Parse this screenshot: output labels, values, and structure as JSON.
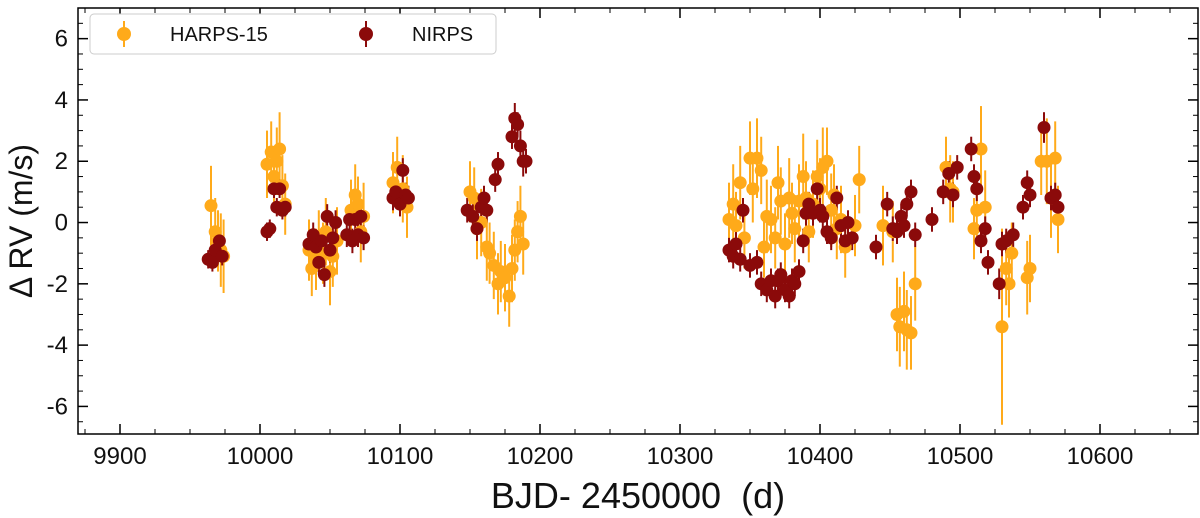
{
  "chart_data": {
    "type": "scatter",
    "title": "",
    "xlabel": "BJD- 2450000  (d)",
    "ylabel": "Δ RV (m/s)",
    "xlim": [
      9870,
      10670
    ],
    "ylim": [
      -6.9,
      7.0
    ],
    "xticks": [
      9900,
      10000,
      10100,
      10200,
      10300,
      10400,
      10500,
      10600
    ],
    "yticks": [
      -6,
      -4,
      -2,
      0,
      2,
      4,
      6
    ],
    "grid": false,
    "legend_position": "top-left",
    "series": [
      {
        "name": "HARPS-15",
        "color": "#FFAA1A",
        "points": [
          [
            9965,
            0.55,
            1.3
          ],
          [
            9968,
            -0.3,
            1.1
          ],
          [
            9970,
            -0.6,
            1.0
          ],
          [
            9972,
            -0.9,
            1.2
          ],
          [
            9974,
            -1.1,
            1.2
          ],
          [
            10005,
            1.9,
            1.1
          ],
          [
            10008,
            2.3,
            1.0
          ],
          [
            10010,
            1.5,
            1.0
          ],
          [
            10012,
            2.0,
            1.1
          ],
          [
            10014,
            2.4,
            1.2
          ],
          [
            10016,
            1.2,
            1.0
          ],
          [
            10018,
            0.6,
            1.0
          ],
          [
            10035,
            -0.9,
            1.0
          ],
          [
            10037,
            -1.5,
            0.9
          ],
          [
            10040,
            -1.2,
            1.0
          ],
          [
            10042,
            -0.6,
            1.0
          ],
          [
            10045,
            -1.0,
            1.0
          ],
          [
            10047,
            -0.3,
            1.1
          ],
          [
            10050,
            -1.6,
            1.1
          ],
          [
            10052,
            -1.1,
            1.0
          ],
          [
            10055,
            -0.6,
            1.1
          ],
          [
            10065,
            0.4,
            1.0
          ],
          [
            10068,
            0.9,
            1.0
          ],
          [
            10070,
            0.6,
            0.9
          ],
          [
            10072,
            -0.3,
            1.0
          ],
          [
            10074,
            0.2,
            1.1
          ],
          [
            10095,
            1.3,
            1.0
          ],
          [
            10098,
            1.8,
            1.0
          ],
          [
            10102,
            1.1,
            1.1
          ],
          [
            10105,
            0.5,
            1.0
          ],
          [
            10150,
            1.0,
            1.0
          ],
          [
            10153,
            0.8,
            1.0
          ],
          [
            10155,
            -0.2,
            1.0
          ],
          [
            10158,
            0.0,
            1.1
          ],
          [
            10162,
            -0.8,
            1.1
          ],
          [
            10164,
            -1.0,
            1.0
          ],
          [
            10167,
            -1.4,
            1.1
          ],
          [
            10170,
            -2.0,
            1.0
          ],
          [
            10172,
            -1.6,
            1.0
          ],
          [
            10175,
            -1.8,
            1.1
          ],
          [
            10178,
            -2.4,
            1.0
          ],
          [
            10180,
            -1.5,
            1.1
          ],
          [
            10182,
            -0.9,
            1.0
          ],
          [
            10184,
            -0.3,
            1.0
          ],
          [
            10186,
            0.2,
            1.0
          ],
          [
            10188,
            -0.7,
            1.0
          ],
          [
            10335,
            0.1,
            1.2
          ],
          [
            10338,
            0.6,
            1.3
          ],
          [
            10340,
            -0.1,
            1.1
          ],
          [
            10343,
            1.3,
            1.2
          ],
          [
            10346,
            -0.5,
            1.0
          ],
          [
            10350,
            2.1,
            1.2
          ],
          [
            10352,
            1.1,
            1.1
          ],
          [
            10355,
            2.1,
            1.3
          ],
          [
            10358,
            1.7,
            1.1
          ],
          [
            10360,
            -0.8,
            1.0
          ],
          [
            10362,
            0.2,
            1.2
          ],
          [
            10365,
            0.1,
            1.1
          ],
          [
            10368,
            -0.5,
            1.0
          ],
          [
            10370,
            1.3,
            1.2
          ],
          [
            10372,
            0.7,
            1.1
          ],
          [
            10375,
            -0.7,
            1.0
          ],
          [
            10378,
            0.8,
            1.3
          ],
          [
            10380,
            0.3,
            1.0
          ],
          [
            10382,
            -0.2,
            1.1
          ],
          [
            10385,
            0.7,
            1.2
          ],
          [
            10388,
            1.5,
            1.4
          ],
          [
            10390,
            0.8,
            1.2
          ],
          [
            10392,
            -0.3,
            1.0
          ],
          [
            10395,
            0.6,
            1.1
          ],
          [
            10398,
            1.5,
            1.2
          ],
          [
            10400,
            1.1,
            1.0
          ],
          [
            10402,
            1.8,
            1.3
          ],
          [
            10405,
            2.0,
            1.1
          ],
          [
            10408,
            0.4,
            1.2
          ],
          [
            10410,
            0.9,
            1.0
          ],
          [
            10412,
            -0.2,
            1.0
          ],
          [
            10415,
            0.1,
            1.1
          ],
          [
            10418,
            -0.8,
            1.0
          ],
          [
            10425,
            -0.1,
            1.0
          ],
          [
            10428,
            1.4,
            1.1
          ],
          [
            10445,
            -0.1,
            1.3
          ],
          [
            10452,
            -0.3,
            1.0
          ],
          [
            10455,
            -3.0,
            1.2
          ],
          [
            10457,
            -3.4,
            1.3
          ],
          [
            10460,
            -2.9,
            1.3
          ],
          [
            10462,
            -3.5,
            1.3
          ],
          [
            10465,
            -3.6,
            1.2
          ],
          [
            10468,
            -2.0,
            1.2
          ],
          [
            10490,
            1.8,
            1.0
          ],
          [
            10493,
            1.1,
            1.1
          ],
          [
            10495,
            1.0,
            1.0
          ],
          [
            10510,
            -0.2,
            1.0
          ],
          [
            10512,
            0.4,
            1.1
          ],
          [
            10515,
            2.4,
            1.4
          ],
          [
            10518,
            0.5,
            1.2
          ],
          [
            10530,
            -3.4,
            3.2
          ],
          [
            10533,
            -1.5,
            1.2
          ],
          [
            10535,
            -2.0,
            1.1
          ],
          [
            10537,
            -1.0,
            1.0
          ],
          [
            10548,
            -1.8,
            1.2
          ],
          [
            10550,
            -1.5,
            1.1
          ],
          [
            10558,
            2.0,
            1.1
          ],
          [
            10562,
            2.0,
            1.4
          ],
          [
            10565,
            0.8,
            1.3
          ],
          [
            10568,
            2.1,
            1.2
          ],
          [
            10570,
            0.1,
            1.1
          ]
        ]
      },
      {
        "name": "NIRPS",
        "color": "#8B0A0A",
        "points": [
          [
            9963,
            -1.2,
            0.3
          ],
          [
            9966,
            -1.3,
            0.3
          ],
          [
            9968,
            -0.9,
            0.3
          ],
          [
            9971,
            -0.6,
            0.3
          ],
          [
            9973,
            -1.1,
            0.3
          ],
          [
            10005,
            -0.3,
            0.3
          ],
          [
            10007,
            -0.2,
            0.3
          ],
          [
            10010,
            1.1,
            0.3
          ],
          [
            10012,
            0.5,
            0.3
          ],
          [
            10014,
            1.1,
            0.3
          ],
          [
            10016,
            0.4,
            0.3
          ],
          [
            10018,
            0.5,
            0.3
          ],
          [
            10035,
            -0.7,
            0.4
          ],
          [
            10038,
            -0.4,
            0.4
          ],
          [
            10040,
            -0.8,
            0.4
          ],
          [
            10042,
            -1.3,
            0.4
          ],
          [
            10044,
            -0.6,
            0.4
          ],
          [
            10046,
            -1.7,
            0.4
          ],
          [
            10048,
            0.2,
            0.4
          ],
          [
            10050,
            -0.9,
            0.4
          ],
          [
            10052,
            -0.5,
            0.4
          ],
          [
            10054,
            0.0,
            0.4
          ],
          [
            10062,
            -0.4,
            0.4
          ],
          [
            10064,
            0.1,
            0.4
          ],
          [
            10066,
            -0.6,
            0.4
          ],
          [
            10068,
            0.1,
            0.4
          ],
          [
            10070,
            -0.4,
            0.4
          ],
          [
            10072,
            0.2,
            0.4
          ],
          [
            10074,
            -0.5,
            0.4
          ],
          [
            10095,
            0.8,
            0.4
          ],
          [
            10097,
            1.0,
            0.4
          ],
          [
            10100,
            0.6,
            0.4
          ],
          [
            10102,
            1.7,
            0.4
          ],
          [
            10104,
            0.9,
            0.4
          ],
          [
            10106,
            0.8,
            0.4
          ],
          [
            10148,
            0.4,
            0.4
          ],
          [
            10152,
            0.2,
            0.4
          ],
          [
            10155,
            -0.2,
            0.4
          ],
          [
            10158,
            0.5,
            0.4
          ],
          [
            10160,
            0.8,
            0.4
          ],
          [
            10162,
            0.4,
            0.4
          ],
          [
            10168,
            1.4,
            0.4
          ],
          [
            10170,
            1.9,
            0.4
          ],
          [
            10180,
            2.8,
            0.4
          ],
          [
            10182,
            3.4,
            0.5
          ],
          [
            10184,
            3.2,
            0.4
          ],
          [
            10186,
            2.5,
            0.5
          ],
          [
            10188,
            2.0,
            0.5
          ],
          [
            10190,
            2.0,
            0.4
          ],
          [
            10335,
            -0.9,
            0.4
          ],
          [
            10338,
            -1.1,
            0.4
          ],
          [
            10340,
            -0.7,
            0.4
          ],
          [
            10343,
            -1.2,
            0.4
          ],
          [
            10345,
            0.4,
            0.4
          ],
          [
            10350,
            -1.4,
            0.4
          ],
          [
            10355,
            -1.3,
            0.4
          ],
          [
            10358,
            -2.0,
            0.4
          ],
          [
            10362,
            -2.2,
            0.4
          ],
          [
            10365,
            -1.9,
            0.4
          ],
          [
            10368,
            -2.4,
            0.4
          ],
          [
            10370,
            -1.9,
            0.4
          ],
          [
            10372,
            -1.7,
            0.4
          ],
          [
            10375,
            -2.2,
            0.4
          ],
          [
            10378,
            -2.4,
            0.4
          ],
          [
            10380,
            -1.9,
            0.4
          ],
          [
            10382,
            -2.0,
            0.4
          ],
          [
            10385,
            -1.6,
            0.4
          ],
          [
            10388,
            -0.6,
            0.4
          ],
          [
            10390,
            0.3,
            0.4
          ],
          [
            10392,
            0.6,
            0.4
          ],
          [
            10395,
            0.3,
            0.4
          ],
          [
            10398,
            1.1,
            0.4
          ],
          [
            10400,
            0.4,
            0.4
          ],
          [
            10402,
            0.2,
            0.4
          ],
          [
            10405,
            -0.3,
            0.4
          ],
          [
            10408,
            -0.5,
            0.4
          ],
          [
            10412,
            0.8,
            0.4
          ],
          [
            10415,
            -0.1,
            0.4
          ],
          [
            10418,
            -0.6,
            0.4
          ],
          [
            10420,
            0.0,
            0.4
          ],
          [
            10423,
            -0.5,
            0.4
          ],
          [
            10440,
            -0.8,
            0.4
          ],
          [
            10448,
            0.6,
            0.4
          ],
          [
            10452,
            -0.2,
            0.4
          ],
          [
            10455,
            -0.3,
            0.4
          ],
          [
            10458,
            0.2,
            0.4
          ],
          [
            10460,
            -0.1,
            0.4
          ],
          [
            10462,
            0.6,
            0.4
          ],
          [
            10465,
            1.0,
            0.4
          ],
          [
            10468,
            -0.4,
            0.4
          ],
          [
            10480,
            0.1,
            0.4
          ],
          [
            10488,
            1.0,
            0.4
          ],
          [
            10492,
            1.6,
            0.4
          ],
          [
            10495,
            0.9,
            0.4
          ],
          [
            10498,
            1.8,
            0.4
          ],
          [
            10508,
            2.4,
            0.4
          ],
          [
            10510,
            1.5,
            0.4
          ],
          [
            10512,
            1.1,
            0.4
          ],
          [
            10515,
            -0.6,
            0.4
          ],
          [
            10518,
            -0.2,
            0.4
          ],
          [
            10520,
            -1.3,
            0.4
          ],
          [
            10528,
            -2.0,
            0.5
          ],
          [
            10530,
            -0.7,
            0.4
          ],
          [
            10533,
            -0.6,
            0.4
          ],
          [
            10538,
            -0.4,
            0.4
          ],
          [
            10545,
            0.5,
            0.4
          ],
          [
            10548,
            1.3,
            0.4
          ],
          [
            10550,
            0.9,
            0.4
          ],
          [
            10560,
            3.1,
            0.5
          ],
          [
            10565,
            0.8,
            0.4
          ],
          [
            10568,
            0.9,
            0.4
          ],
          [
            10570,
            0.5,
            0.4
          ]
        ]
      }
    ]
  }
}
